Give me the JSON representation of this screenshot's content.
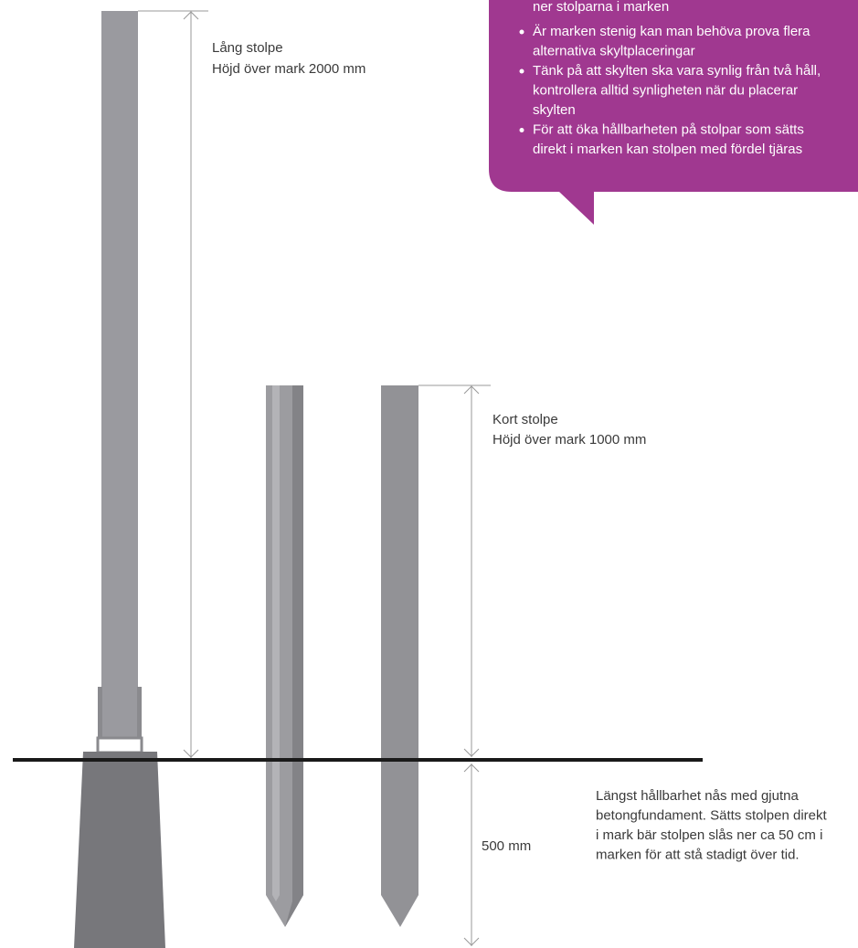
{
  "callout": {
    "continued_line": "ner stolparna i marken",
    "bullets": [
      [
        "Är marken stenig kan man behöva prova flera",
        "alternativa skyltplaceringar"
      ],
      [
        "Tänk på att skylten ska vara synlig från två håll,",
        "kontrollera alltid synligheten när du placerar",
        "skylten"
      ],
      [
        "För att öka hållbarheten på stolpar som sätts",
        "direkt i marken kan stolpen med fördel tjäras"
      ]
    ]
  },
  "long_post": {
    "title": "Lång stolpe",
    "height": "Höjd över mark 2000 mm"
  },
  "short_post": {
    "title": "Kort stolpe",
    "height": "Höjd över mark 1000 mm"
  },
  "depth_label": "500 mm",
  "note": [
    "Längst hållbarhet nås med gjutna",
    "betongfundament. Sätts stolpen direkt",
    "i mark bär stolpen slås ner ca 50 cm i",
    "marken för att stå stadigt  över tid."
  ]
}
